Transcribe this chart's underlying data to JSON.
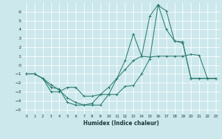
{
  "xlabel": "Humidex (Indice chaleur)",
  "background_color": "#cce8ec",
  "grid_color": "#ffffff",
  "line_color": "#2e7d70",
  "xlim": [
    -0.5,
    23.5
  ],
  "ylim": [
    -5.5,
    7.0
  ],
  "xticks": [
    0,
    1,
    2,
    3,
    4,
    5,
    6,
    7,
    8,
    9,
    10,
    11,
    12,
    13,
    14,
    15,
    16,
    17,
    18,
    19,
    20,
    21,
    22,
    23
  ],
  "yticks": [
    -5,
    -4,
    -3,
    -2,
    -1,
    0,
    1,
    2,
    3,
    4,
    5,
    6
  ],
  "line1": {
    "x": [
      0,
      1,
      2,
      3,
      4,
      5,
      6,
      7,
      8,
      9,
      10,
      11,
      12,
      13,
      14,
      15,
      16,
      17,
      18,
      19,
      20,
      21,
      22,
      23
    ],
    "y": [
      -1,
      -1,
      -1.5,
      -2.2,
      -2.8,
      -3.7,
      -4.2,
      -4.5,
      -4.3,
      -3.3,
      -2.5,
      -1.5,
      -0.5,
      0.5,
      1.0,
      0.9,
      1.0,
      1.0,
      1.0,
      1.0,
      1.2,
      1.1,
      -1.5,
      -1.5
    ]
  },
  "line2": {
    "x": [
      0,
      1,
      2,
      3,
      4,
      5,
      6,
      7,
      8,
      9,
      10,
      11,
      12,
      13,
      14,
      15,
      16,
      17,
      18,
      19,
      20,
      21,
      22,
      23
    ],
    "y": [
      -1,
      -1,
      -1.5,
      -3,
      -3,
      -2.5,
      -2.5,
      -3.5,
      -3.5,
      -3.3,
      -3.3,
      -1.5,
      0.5,
      3.5,
      1.0,
      5.5,
      6.8,
      4.0,
      2.7,
      2.6,
      -1.5,
      -1.5,
      -1.5,
      -1.5
    ]
  },
  "line3": {
    "x": [
      0,
      1,
      2,
      3,
      4,
      5,
      6,
      7,
      8,
      9,
      10,
      11,
      12,
      13,
      14,
      15,
      16,
      17,
      18,
      19,
      20,
      21,
      22,
      23
    ],
    "y": [
      -1,
      -1,
      -1.5,
      -2.5,
      -2.7,
      -4.2,
      -4.5,
      -4.5,
      -4.5,
      -4.5,
      -3.3,
      -3.3,
      -2.4,
      -2.3,
      -1.0,
      0.7,
      6.7,
      6.1,
      2.7,
      2.5,
      -1.5,
      -1.5,
      -1.5,
      -1.5
    ]
  }
}
